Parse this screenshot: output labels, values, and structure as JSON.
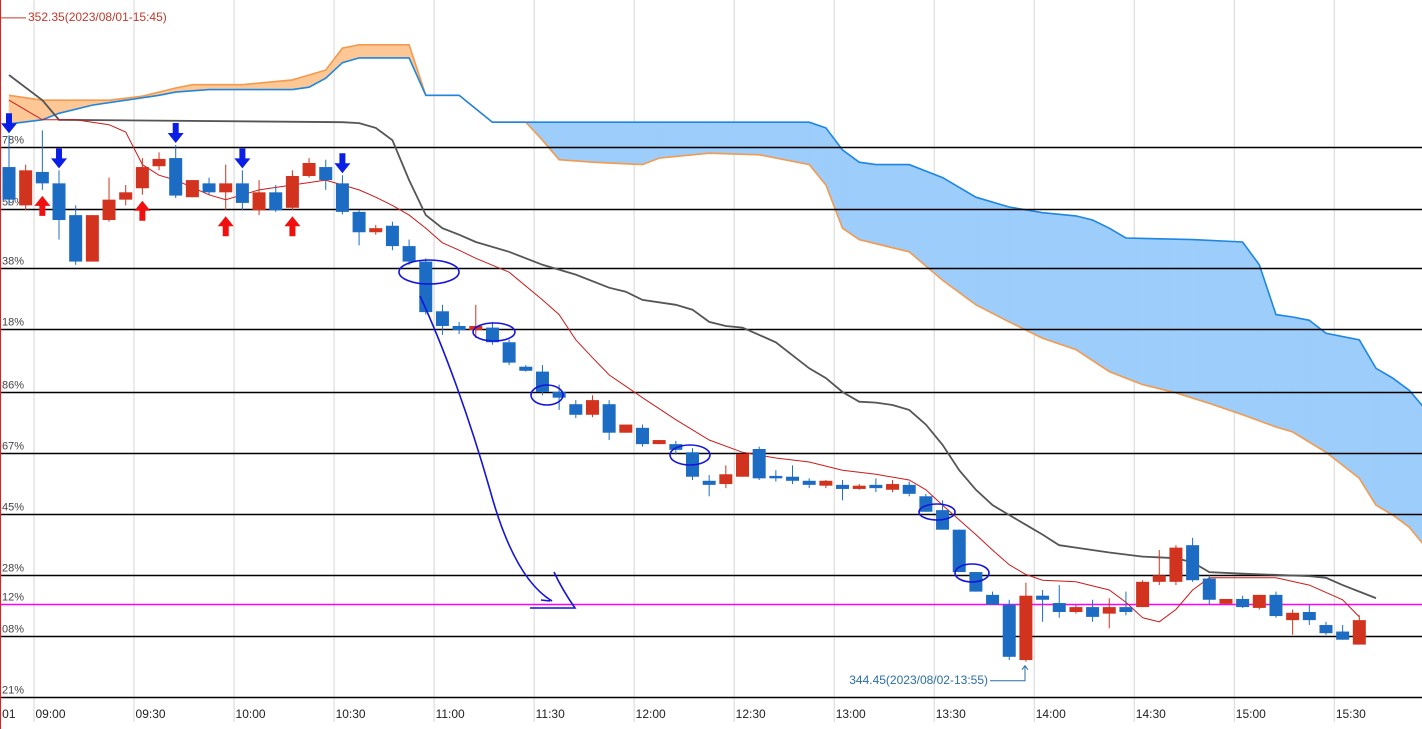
{
  "chart_data": {
    "type": "candlestick",
    "xlim": [
      -0.54,
      84.76
    ],
    "ylim": [
      343.98,
      352.57
    ],
    "xticks": [
      {
        "value": -0.5,
        "label": "01"
      },
      {
        "value": 1.5,
        "label": "09:00"
      },
      {
        "value": 7.5,
        "label": "09:30"
      },
      {
        "value": 13.5,
        "label": "10:00"
      },
      {
        "value": 19.5,
        "label": "10:30"
      },
      {
        "value": 25.5,
        "label": "11:00"
      },
      {
        "value": 31.5,
        "label": "11:30"
      },
      {
        "value": 37.5,
        "label": "12:00"
      },
      {
        "value": 43.5,
        "label": "12:30"
      },
      {
        "value": 49.5,
        "label": "13:00"
      },
      {
        "value": 55.5,
        "label": "13:30"
      },
      {
        "value": 61.5,
        "label": "14:00"
      },
      {
        "value": 67.5,
        "label": "14:30"
      },
      {
        "value": 73.5,
        "label": "15:00"
      },
      {
        "value": 79.5,
        "label": "15:30"
      }
    ],
    "grid": true,
    "up_color": "#d2331f",
    "down_color": "#1d6cc4",
    "open": [
      350.52,
      350.05,
      350.46,
      350.32,
      349.93,
      349.36,
      349.87,
      350.12,
      350.26,
      350.53,
      350.63,
      350.15,
      350.32,
      350.21,
      350.32,
      349.99,
      350.21,
      350.02,
      350.41,
      350.52,
      350.32,
      349.97,
      349.72,
      349.8,
      349.55,
      349.36,
      348.75,
      348.57,
      348.52,
      348.55,
      348.37,
      348.07,
      348.01,
      347.76,
      347.61,
      347.48,
      347.61,
      347.26,
      347.32,
      347.12,
      347.12,
      347.02,
      346.67,
      346.63,
      346.72,
      347.06,
      346.73,
      346.72,
      346.67,
      346.61,
      346.62,
      346.57,
      346.62,
      346.56,
      346.62,
      346.48,
      346.31,
      346.07,
      345.55,
      345.27,
      345.15,
      344.47,
      345.26,
      345.17,
      345.06,
      345.12,
      345.04,
      345.12,
      345.12,
      345.43,
      345.43,
      345.88,
      345.47,
      345.16,
      345.22,
      345.11,
      345.27,
      344.96,
      345.06,
      344.9,
      344.82,
      344.66
    ],
    "high": [
      350.91,
      350.55,
      350.97,
      350.48,
      350.05,
      349.93,
      350.39,
      350.3,
      350.63,
      350.7,
      350.79,
      350.36,
      350.39,
      350.55,
      350.48,
      350.36,
      350.3,
      350.48,
      350.63,
      350.61,
      350.42,
      349.99,
      349.81,
      349.85,
      349.63,
      349.4,
      348.83,
      348.62,
      348.83,
      348.62,
      348.4,
      348.09,
      348.09,
      347.85,
      347.66,
      347.72,
      347.66,
      347.36,
      347.36,
      347.17,
      347.16,
      347.07,
      346.74,
      346.86,
      347.0,
      347.09,
      346.8,
      346.86,
      346.7,
      346.68,
      346.68,
      346.63,
      346.7,
      346.68,
      346.66,
      346.51,
      346.43,
      346.07,
      345.55,
      345.31,
      345.21,
      345.42,
      345.33,
      345.39,
      345.15,
      345.21,
      345.23,
      345.31,
      345.45,
      345.82,
      345.88,
      345.97,
      345.51,
      345.22,
      345.26,
      345.27,
      345.31,
      345.09,
      345.15,
      344.94,
      344.9,
      345.02
    ],
    "low": [
      350.05,
      349.99,
      350.24,
      349.63,
      349.32,
      349.36,
      349.85,
      350.05,
      350.18,
      350.48,
      350.14,
      350.15,
      350.18,
      349.99,
      349.99,
      349.93,
      349.97,
      349.99,
      350.39,
      350.24,
      349.94,
      349.56,
      349.69,
      349.5,
      349.32,
      348.71,
      348.46,
      348.47,
      348.42,
      348.34,
      348.09,
      348.01,
      347.72,
      347.54,
      347.44,
      347.45,
      347.17,
      347.26,
      347.09,
      347.12,
      346.99,
      346.68,
      346.48,
      346.58,
      346.72,
      346.68,
      346.66,
      346.63,
      346.58,
      346.58,
      346.43,
      346.56,
      346.53,
      346.53,
      346.48,
      346.29,
      346.07,
      345.55,
      345.31,
      345.15,
      344.47,
      344.45,
      344.94,
      344.99,
      345.04,
      344.94,
      344.86,
      345.02,
      345.12,
      345.39,
      345.39,
      345.43,
      345.15,
      345.15,
      345.11,
      345.09,
      344.99,
      344.78,
      344.9,
      344.78,
      344.72,
      344.66
    ],
    "close": [
      350.12,
      350.48,
      350.32,
      349.87,
      349.36,
      349.93,
      350.12,
      350.21,
      350.52,
      350.62,
      350.17,
      350.36,
      350.21,
      350.32,
      350.08,
      350.21,
      349.99,
      350.41,
      350.57,
      350.36,
      349.97,
      349.72,
      349.77,
      349.55,
      349.36,
      348.74,
      348.57,
      348.52,
      348.57,
      348.37,
      348.12,
      348.02,
      347.76,
      347.69,
      347.48,
      347.66,
      347.26,
      347.36,
      347.12,
      347.17,
      347.05,
      346.72,
      346.62,
      346.75,
      347.0,
      346.7,
      346.7,
      346.67,
      346.62,
      346.67,
      346.57,
      346.61,
      346.58,
      346.63,
      346.51,
      346.29,
      346.07,
      345.55,
      345.31,
      345.15,
      344.51,
      345.26,
      345.21,
      345.06,
      345.12,
      345.0,
      345.12,
      345.06,
      345.43,
      345.51,
      345.85,
      345.45,
      345.21,
      345.22,
      345.12,
      345.27,
      345.01,
      345.05,
      344.96,
      344.8,
      344.72,
      344.96
    ],
    "lines": [
      {
        "color": "#555555",
        "x": [
          0,
          2,
          3,
          20,
          21,
          22,
          23,
          24,
          25,
          26,
          27,
          28,
          30,
          32,
          34,
          36,
          37,
          38,
          40,
          41,
          42,
          43,
          44,
          45,
          46,
          47,
          48,
          49,
          50,
          51,
          52,
          53,
          54,
          55,
          56,
          57,
          58,
          59,
          60,
          61,
          62,
          63,
          64,
          66,
          68,
          70,
          71,
          72,
          74,
          78,
          79,
          80,
          81,
          82
        ],
        "values": [
          351.65,
          351.34,
          351.1,
          351.07,
          351.06,
          351.0,
          350.85,
          350.36,
          349.93,
          349.77,
          349.69,
          349.6,
          349.48,
          349.32,
          349.2,
          349.04,
          348.99,
          348.89,
          348.83,
          348.77,
          348.62,
          348.57,
          348.55,
          348.46,
          348.37,
          348.21,
          348.05,
          347.93,
          347.76,
          347.64,
          347.63,
          347.6,
          347.54,
          347.36,
          347.11,
          346.8,
          346.56,
          346.37,
          346.25,
          346.13,
          346.01,
          345.88,
          345.85,
          345.79,
          345.74,
          345.72,
          345.67,
          345.55,
          345.53,
          345.5,
          345.48,
          345.39,
          345.31,
          345.23
        ]
      },
      {
        "color": "#cc1b1b",
        "x": [
          0,
          2,
          4,
          6,
          7,
          8,
          9,
          10,
          12,
          13,
          15,
          17,
          19,
          20,
          21,
          22,
          23,
          24,
          25,
          26,
          27,
          28,
          30,
          32,
          33,
          34,
          35,
          36,
          38,
          40,
          42,
          44,
          46,
          48,
          50,
          52,
          54,
          55,
          56,
          57,
          58,
          59,
          60,
          61,
          62,
          64,
          66,
          67,
          68,
          69,
          70,
          71,
          72,
          76,
          78,
          80,
          81
        ],
        "values": [
          351.34,
          351.1,
          351.1,
          351.04,
          350.95,
          350.55,
          350.42,
          350.36,
          350.18,
          350.12,
          350.24,
          350.3,
          350.36,
          350.3,
          350.24,
          350.15,
          350.05,
          349.93,
          349.77,
          349.59,
          349.5,
          349.4,
          349.23,
          348.89,
          348.71,
          348.4,
          348.18,
          347.97,
          347.69,
          347.42,
          347.17,
          347.02,
          346.95,
          346.9,
          346.8,
          346.75,
          346.68,
          346.56,
          346.37,
          346.19,
          346.01,
          345.82,
          345.64,
          345.52,
          345.45,
          345.43,
          345.33,
          345.18,
          344.99,
          344.94,
          345.09,
          345.33,
          345.48,
          345.48,
          345.39,
          345.21,
          345.0
        ]
      }
    ],
    "cloud": {
      "fill_up": "#fdc895",
      "fill_down": "#9dcdfa",
      "span_a": {
        "color": "#f39a4e",
        "x": [
          0,
          2,
          6,
          8,
          10,
          11,
          14,
          17,
          19,
          20,
          21,
          24,
          25,
          27,
          29,
          31,
          32,
          33,
          35,
          38,
          39,
          42,
          45,
          48,
          49,
          50,
          51,
          54,
          56,
          58,
          60,
          62,
          64,
          66,
          68,
          70,
          72,
          74,
          76,
          77,
          79,
          81,
          82,
          83,
          84,
          85
        ],
        "values": [
          351.4,
          351.34,
          351.34,
          351.39,
          351.49,
          351.53,
          351.53,
          351.59,
          351.71,
          351.98,
          352.02,
          352.02,
          351.4,
          351.4,
          351.07,
          351.07,
          350.85,
          350.61,
          350.58,
          350.55,
          350.63,
          350.69,
          350.67,
          350.55,
          350.3,
          349.77,
          349.63,
          349.48,
          349.13,
          348.83,
          348.62,
          348.42,
          348.28,
          348.01,
          347.85,
          347.75,
          347.62,
          347.48,
          347.33,
          347.27,
          347.02,
          346.7,
          346.37,
          346.25,
          346.1,
          345.85
        ]
      },
      "span_b": {
        "color": "#1e86e0",
        "x": [
          0,
          2,
          3,
          5,
          7,
          9,
          10,
          12,
          17,
          18,
          19,
          20,
          21,
          24,
          25,
          27,
          29,
          48,
          49,
          50,
          51,
          52,
          54,
          56,
          58,
          60,
          62,
          64,
          65,
          66,
          67,
          71,
          74,
          75,
          76,
          77,
          78,
          79,
          81,
          82,
          83,
          84,
          85
        ],
        "values": [
          351.05,
          351.1,
          351.18,
          351.28,
          351.34,
          351.4,
          351.44,
          351.47,
          351.47,
          351.5,
          351.61,
          351.8,
          351.86,
          351.86,
          351.4,
          351.4,
          351.07,
          351.07,
          351.0,
          350.73,
          350.58,
          350.55,
          350.55,
          350.39,
          350.15,
          350.03,
          349.96,
          349.92,
          349.87,
          349.77,
          349.65,
          349.63,
          349.6,
          349.32,
          348.71,
          348.68,
          348.64,
          348.48,
          348.4,
          348.05,
          347.93,
          347.78,
          347.54
        ]
      }
    },
    "levels": [
      {
        "value": 350.77,
        "label": "78%"
      },
      {
        "value": 350.01,
        "label": "59%"
      },
      {
        "value": 349.28,
        "label": "38%"
      },
      {
        "value": 348.53,
        "label": "18%"
      },
      {
        "value": 347.76,
        "label": "86%"
      },
      {
        "value": 347.01,
        "label": "67%"
      },
      {
        "value": 346.26,
        "label": "45%"
      },
      {
        "value": 345.51,
        "label": "28%"
      },
      {
        "value": 345.16,
        "label": "12%",
        "color": "#ff00ff"
      },
      {
        "value": 344.77,
        "label": "08%"
      },
      {
        "value": 344.02,
        "label": "21%"
      }
    ],
    "signals": {
      "sell": [
        0,
        3,
        10,
        14,
        20
      ],
      "buy": [
        2,
        8,
        13,
        17
      ],
      "sell_color": "#0a1ee6",
      "buy_color": "#f01010"
    },
    "annotations": [
      {
        "text": "352.35(2023/08/01-15:45)",
        "value": 352.35,
        "color": "#c0392b"
      },
      {
        "text": "344.45(2023/08/02-13:55)",
        "value": 344.45,
        "color": "#2c6ea6"
      }
    ]
  }
}
